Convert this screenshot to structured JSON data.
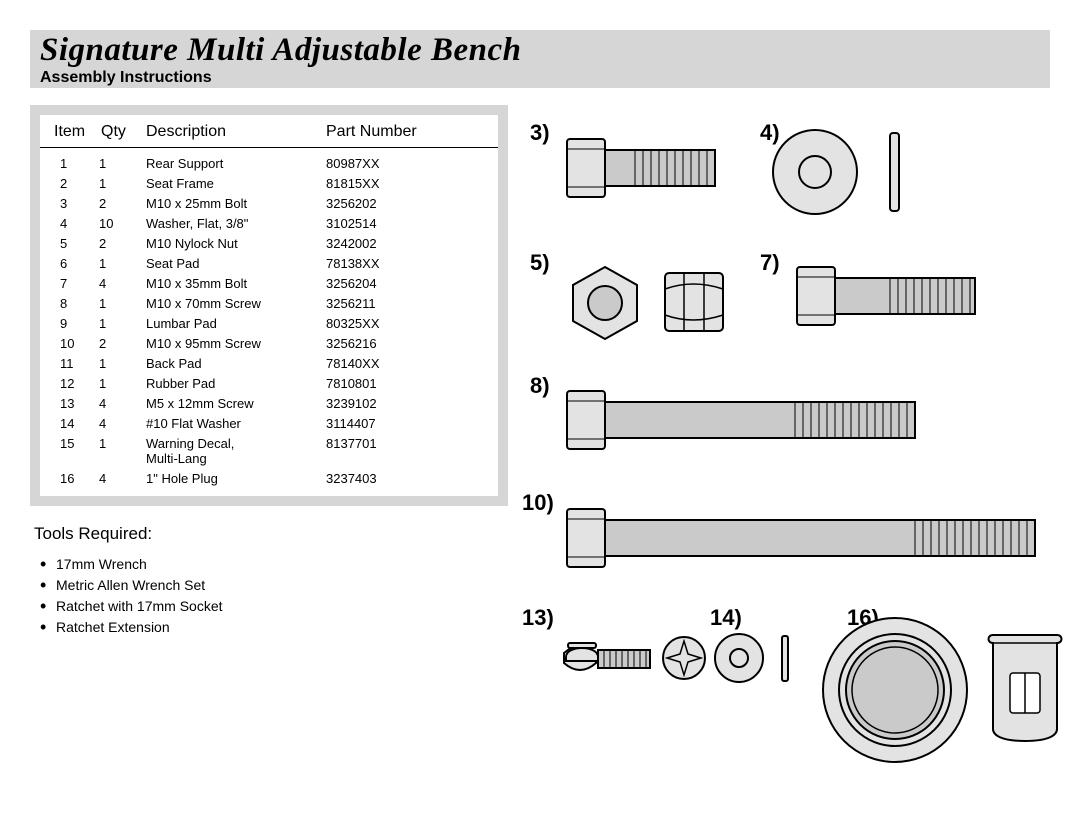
{
  "header": {
    "title": "Signature Multi Adjustable Bench",
    "subtitle": "Assembly Instructions"
  },
  "table": {
    "columns": [
      "Item",
      "Qty",
      "Description",
      "Part Number"
    ],
    "rows": [
      [
        "1",
        "1",
        "Rear Support",
        "80987XX"
      ],
      [
        "2",
        "1",
        "Seat Frame",
        "81815XX"
      ],
      [
        "3",
        "2",
        "M10 x 25mm Bolt",
        "3256202"
      ],
      [
        "4",
        "10",
        "Washer, Flat, 3/8\"",
        "3102514"
      ],
      [
        "5",
        "2",
        "M10 Nylock Nut",
        "3242002"
      ],
      [
        "6",
        "1",
        "Seat Pad",
        "78138XX"
      ],
      [
        "7",
        "4",
        "M10 x 35mm Bolt",
        "3256204"
      ],
      [
        "8",
        "1",
        "M10 x 70mm Screw",
        "3256211"
      ],
      [
        "9",
        "1",
        "Lumbar Pad",
        "80325XX"
      ],
      [
        "10",
        "2",
        "M10 x 95mm Screw",
        "3256216"
      ],
      [
        "11",
        "1",
        "Back Pad",
        "78140XX"
      ],
      [
        "12",
        "1",
        "Rubber Pad",
        "7810801"
      ],
      [
        "13",
        "4",
        "M5 x 12mm Screw",
        "3239102"
      ],
      [
        "14",
        "4",
        "#10 Flat Washer",
        "3114407"
      ],
      [
        "15",
        "1",
        "Warning Decal, Multi-Lang",
        "8137701"
      ],
      [
        "16",
        "4",
        "1\" Hole Plug",
        "3237403"
      ]
    ]
  },
  "tools": {
    "heading": "Tools Required:",
    "items": [
      "17mm Wrench",
      "Metric Allen Wrench Set",
      "Ratchet with 17mm Socket",
      "Ratchet Extension"
    ]
  },
  "diagram_labels": {
    "l3": "3)",
    "l4": "4)",
    "l5": "5)",
    "l7": "7)",
    "l8": "8)",
    "l10": "10)",
    "l13": "13)",
    "l14": "14)",
    "l16": "16)"
  },
  "style": {
    "header_bg": "#d6d6d6",
    "fill_light": "#e3e3e3",
    "fill_dark": "#cacaca",
    "stroke": "#000000",
    "label_fontsize": 22,
    "table_fontsize": 13
  }
}
